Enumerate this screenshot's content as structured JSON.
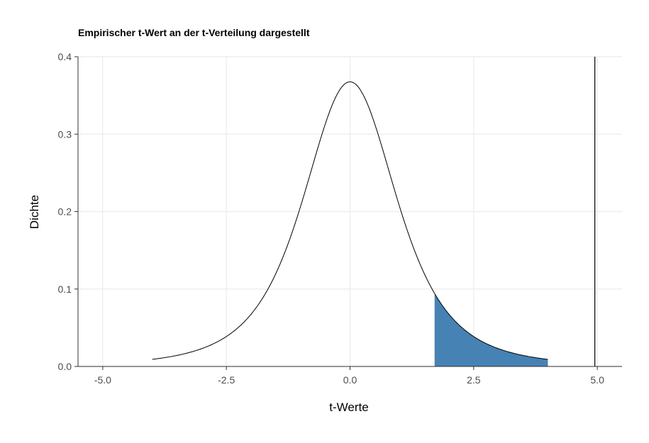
{
  "chart_data": {
    "type": "area",
    "title": "Empirischer t-Wert an der t-Verteilung dargestellt",
    "xlabel": "t-Werte",
    "ylabel": "Dichte",
    "xlim": [
      -5.5,
      5.5
    ],
    "ylim": [
      0,
      0.4
    ],
    "x_ticks": [
      {
        "value": -5.0,
        "label": "-5.0"
      },
      {
        "value": -2.5,
        "label": "-2.5"
      },
      {
        "value": 0.0,
        "label": "0.0"
      },
      {
        "value": 2.5,
        "label": "2.5"
      },
      {
        "value": 5.0,
        "label": "5.0"
      }
    ],
    "y_ticks": [
      {
        "value": 0.0,
        "label": "0.0"
      },
      {
        "value": 0.1,
        "label": "0.1"
      },
      {
        "value": 0.2,
        "label": "0.2"
      },
      {
        "value": 0.3,
        "label": "0.3"
      },
      {
        "value": 0.4,
        "label": "0.4"
      }
    ],
    "grid": true,
    "legend": "none",
    "series": [
      {
        "x": [
          -4.0,
          -3.5,
          -3.0,
          -2.5,
          -2.0,
          -1.5,
          -1.0,
          -0.5,
          0.0,
          0.5,
          1.0,
          1.5,
          2.0,
          2.5,
          3.0,
          3.5,
          4.0
        ],
        "values": [
          0.001,
          0.004,
          0.01,
          0.024,
          0.058,
          0.126,
          0.233,
          0.347,
          0.395,
          0.347,
          0.233,
          0.126,
          0.058,
          0.024,
          0.01,
          0.004,
          0.001
        ]
      }
    ],
    "shaded_region": {
      "x_from": 1.71,
      "x_to": 4.0
    },
    "vertical_line": {
      "x": 4.95
    },
    "colors": {
      "curve": "#000000",
      "shade": "#4682B4",
      "grid": "#EBEBEB",
      "axis": "#333333",
      "tick_text": "#4D4D4D",
      "title_text": "#000000",
      "marker_line": "#000000"
    }
  }
}
